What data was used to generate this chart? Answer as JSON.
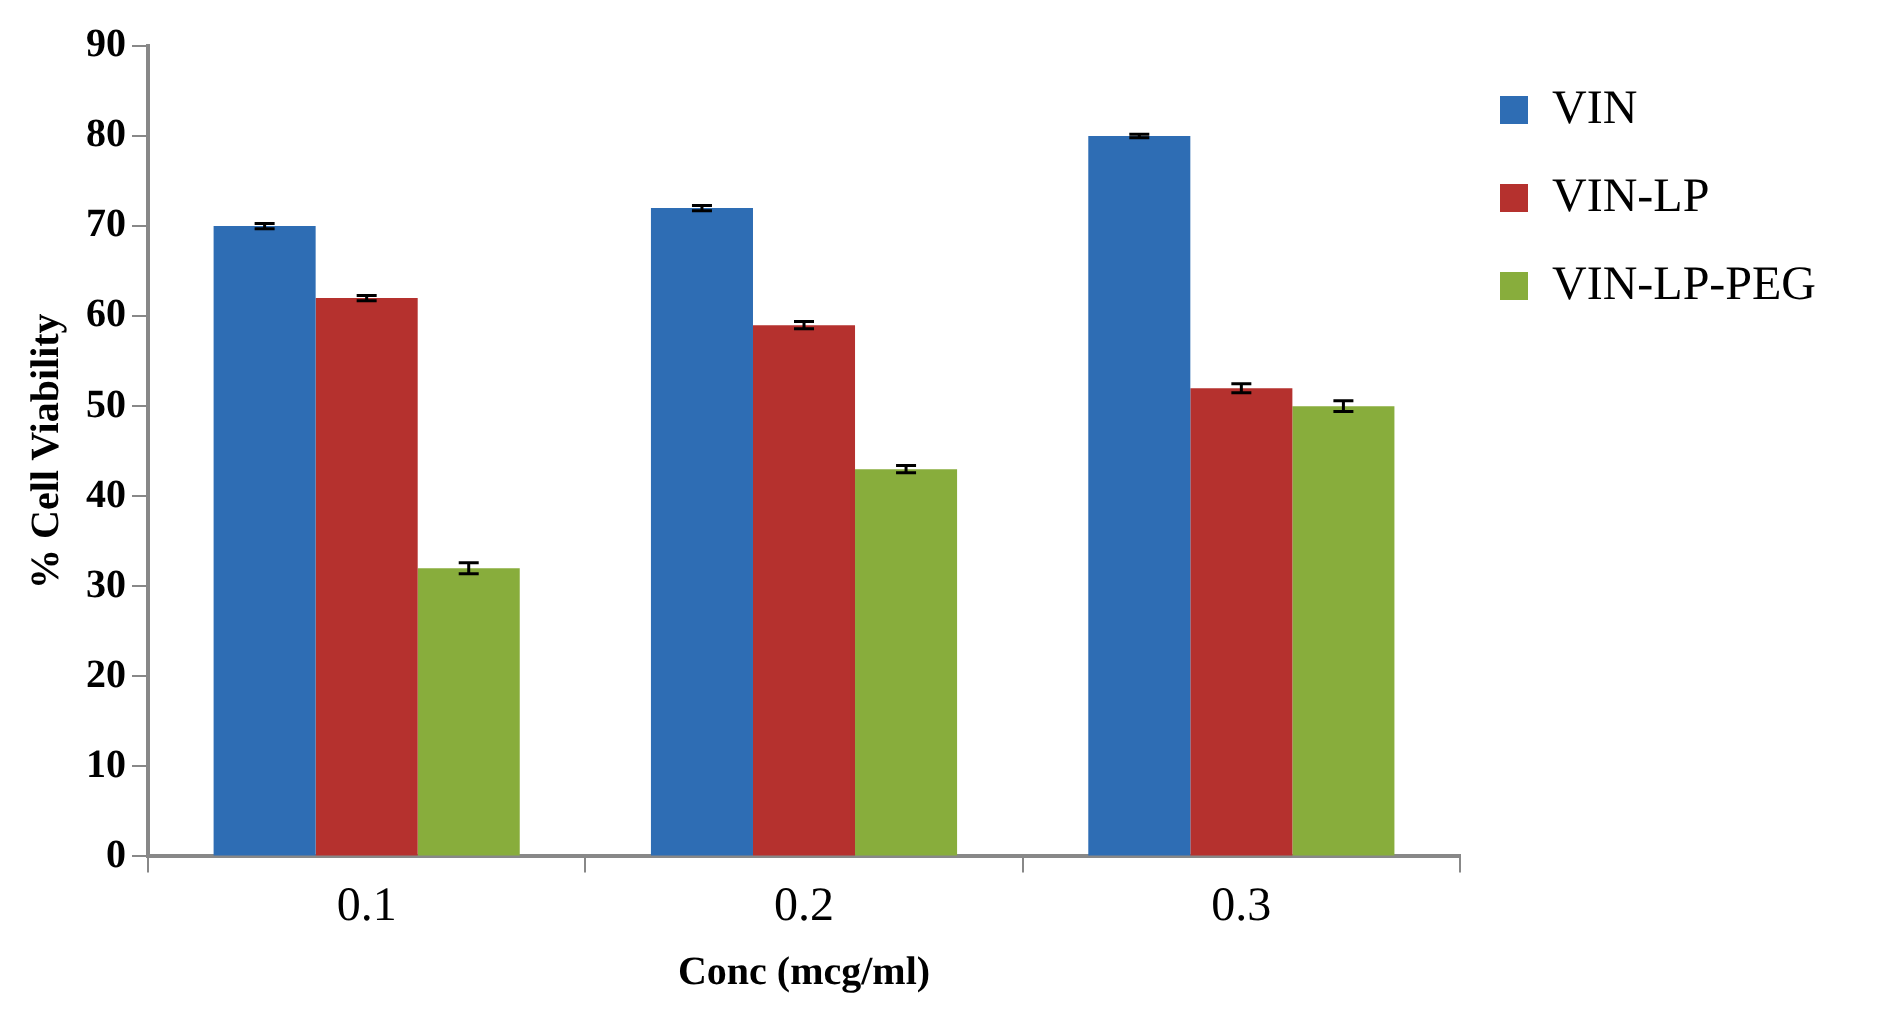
{
  "chart_data": {
    "type": "bar",
    "xlabel": "Conc (mcg/ml)",
    "ylabel": "% Cell Viability",
    "categories": [
      "0.1",
      "0.2",
      "0.3"
    ],
    "series": [
      {
        "name": "VIN",
        "color": "#2e6db4",
        "values": [
          70,
          72,
          80
        ],
        "errors": [
          0.3,
          0.3,
          0.2
        ]
      },
      {
        "name": "VIN-LP",
        "color": "#b5312e",
        "values": [
          62,
          59,
          52
        ],
        "errors": [
          0.3,
          0.4,
          0.5
        ]
      },
      {
        "name": "VIN-LP-PEG",
        "color": "#88ad3c",
        "values": [
          32,
          43,
          50
        ],
        "errors": [
          0.6,
          0.4,
          0.6
        ]
      }
    ],
    "ylim": [
      0,
      90
    ],
    "yticks": [
      0,
      10,
      20,
      30,
      40,
      50,
      60,
      70,
      80,
      90
    ],
    "grid": false,
    "legend": "right"
  }
}
